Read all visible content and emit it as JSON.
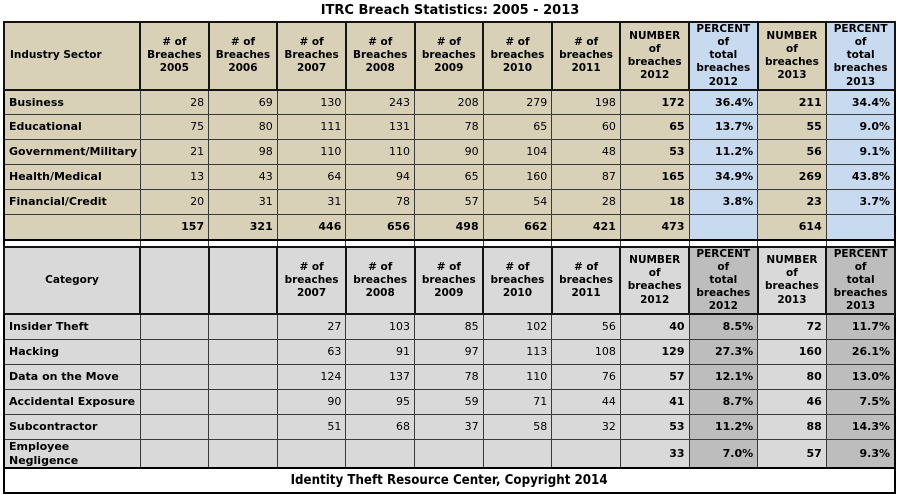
{
  "title": "ITRC Breach Statistics: 2005 - 2013",
  "footer": "Identity Theft Resource Center, Copyright 2014",
  "colors": {
    "tan": "#d8d1b8",
    "blue": "#c8daf0",
    "gray1": "#d9d9d9",
    "gray2": "#bdbdbd",
    "border": "#3a3a3a"
  },
  "table1": {
    "header": [
      "Industry Sector",
      "# of\nBreaches\n2005",
      "# of\nBreaches\n2006",
      "# of\nBreaches\n2007",
      "# of\nBreaches\n2008",
      "# of\nbreaches\n2009",
      "# of\nbreaches\n2010",
      "# of\nbreaches\n2011",
      "NUMBER of\nbreaches\n2012",
      "PERCENT of\ntotal\nbreaches\n2012",
      "NUMBER of\nbreaches\n2013",
      "PERCENT of\ntotal\nbreaches\n2013"
    ],
    "rows": [
      {
        "label": "Business",
        "values": [
          "28",
          "69",
          "130",
          "243",
          "208",
          "279",
          "198",
          "172",
          "36.4%",
          "211",
          "34.4%"
        ]
      },
      {
        "label": "Educational",
        "values": [
          "75",
          "80",
          "111",
          "131",
          "78",
          "65",
          "60",
          "65",
          "13.7%",
          "55",
          "9.0%"
        ]
      },
      {
        "label": "Government/Military",
        "values": [
          "21",
          "98",
          "110",
          "110",
          "90",
          "104",
          "48",
          "53",
          "11.2%",
          "56",
          "9.1%"
        ]
      },
      {
        "label": "Health/Medical",
        "values": [
          "13",
          "43",
          "64",
          "94",
          "65",
          "160",
          "87",
          "165",
          "34.9%",
          "269",
          "43.8%"
        ]
      },
      {
        "label": "Financial/Credit",
        "values": [
          "20",
          "31",
          "31",
          "78",
          "57",
          "54",
          "28",
          "18",
          "3.8%",
          "23",
          "3.7%"
        ]
      },
      {
        "label": "",
        "is_total": true,
        "values": [
          "157",
          "321",
          "446",
          "656",
          "498",
          "662",
          "421",
          "473",
          "",
          "614",
          ""
        ]
      }
    ]
  },
  "table2": {
    "header": [
      "Category",
      "",
      "",
      "# of\nbreaches\n2007",
      "# of\nbreaches\n2008",
      "# of\nbreaches\n2009",
      "# of\nbreaches\n2010",
      "# of\nbreaches\n2011",
      "NUMBER of\nbreaches\n2012",
      "PERCENT of\ntotal\nbreaches\n2012",
      "NUMBER of\nbreaches\n2013",
      "PERCENT of\ntotal\nbreaches\n2013"
    ],
    "rows": [
      {
        "label": "Insider Theft",
        "values": [
          "",
          "",
          "27",
          "103",
          "85",
          "102",
          "56",
          "40",
          "8.5%",
          "72",
          "11.7%"
        ]
      },
      {
        "label": "Hacking",
        "values": [
          "",
          "",
          "63",
          "91",
          "97",
          "113",
          "108",
          "129",
          "27.3%",
          "160",
          "26.1%"
        ]
      },
      {
        "label": "Data on the Move",
        "values": [
          "",
          "",
          "124",
          "137",
          "78",
          "110",
          "76",
          "57",
          "12.1%",
          "80",
          "13.0%"
        ]
      },
      {
        "label": "Accidental Exposure",
        "values": [
          "",
          "",
          "90",
          "95",
          "59",
          "71",
          "44",
          "41",
          "8.7%",
          "46",
          "7.5%"
        ]
      },
      {
        "label": "Subcontractor",
        "values": [
          "",
          "",
          "51",
          "68",
          "37",
          "58",
          "32",
          "53",
          "11.2%",
          "88",
          "14.3%"
        ]
      },
      {
        "label": "Employee Negligence",
        "values": [
          "",
          "",
          "",
          "",
          "",
          "",
          "",
          "33",
          "7.0%",
          "57",
          "9.3%"
        ]
      }
    ]
  }
}
